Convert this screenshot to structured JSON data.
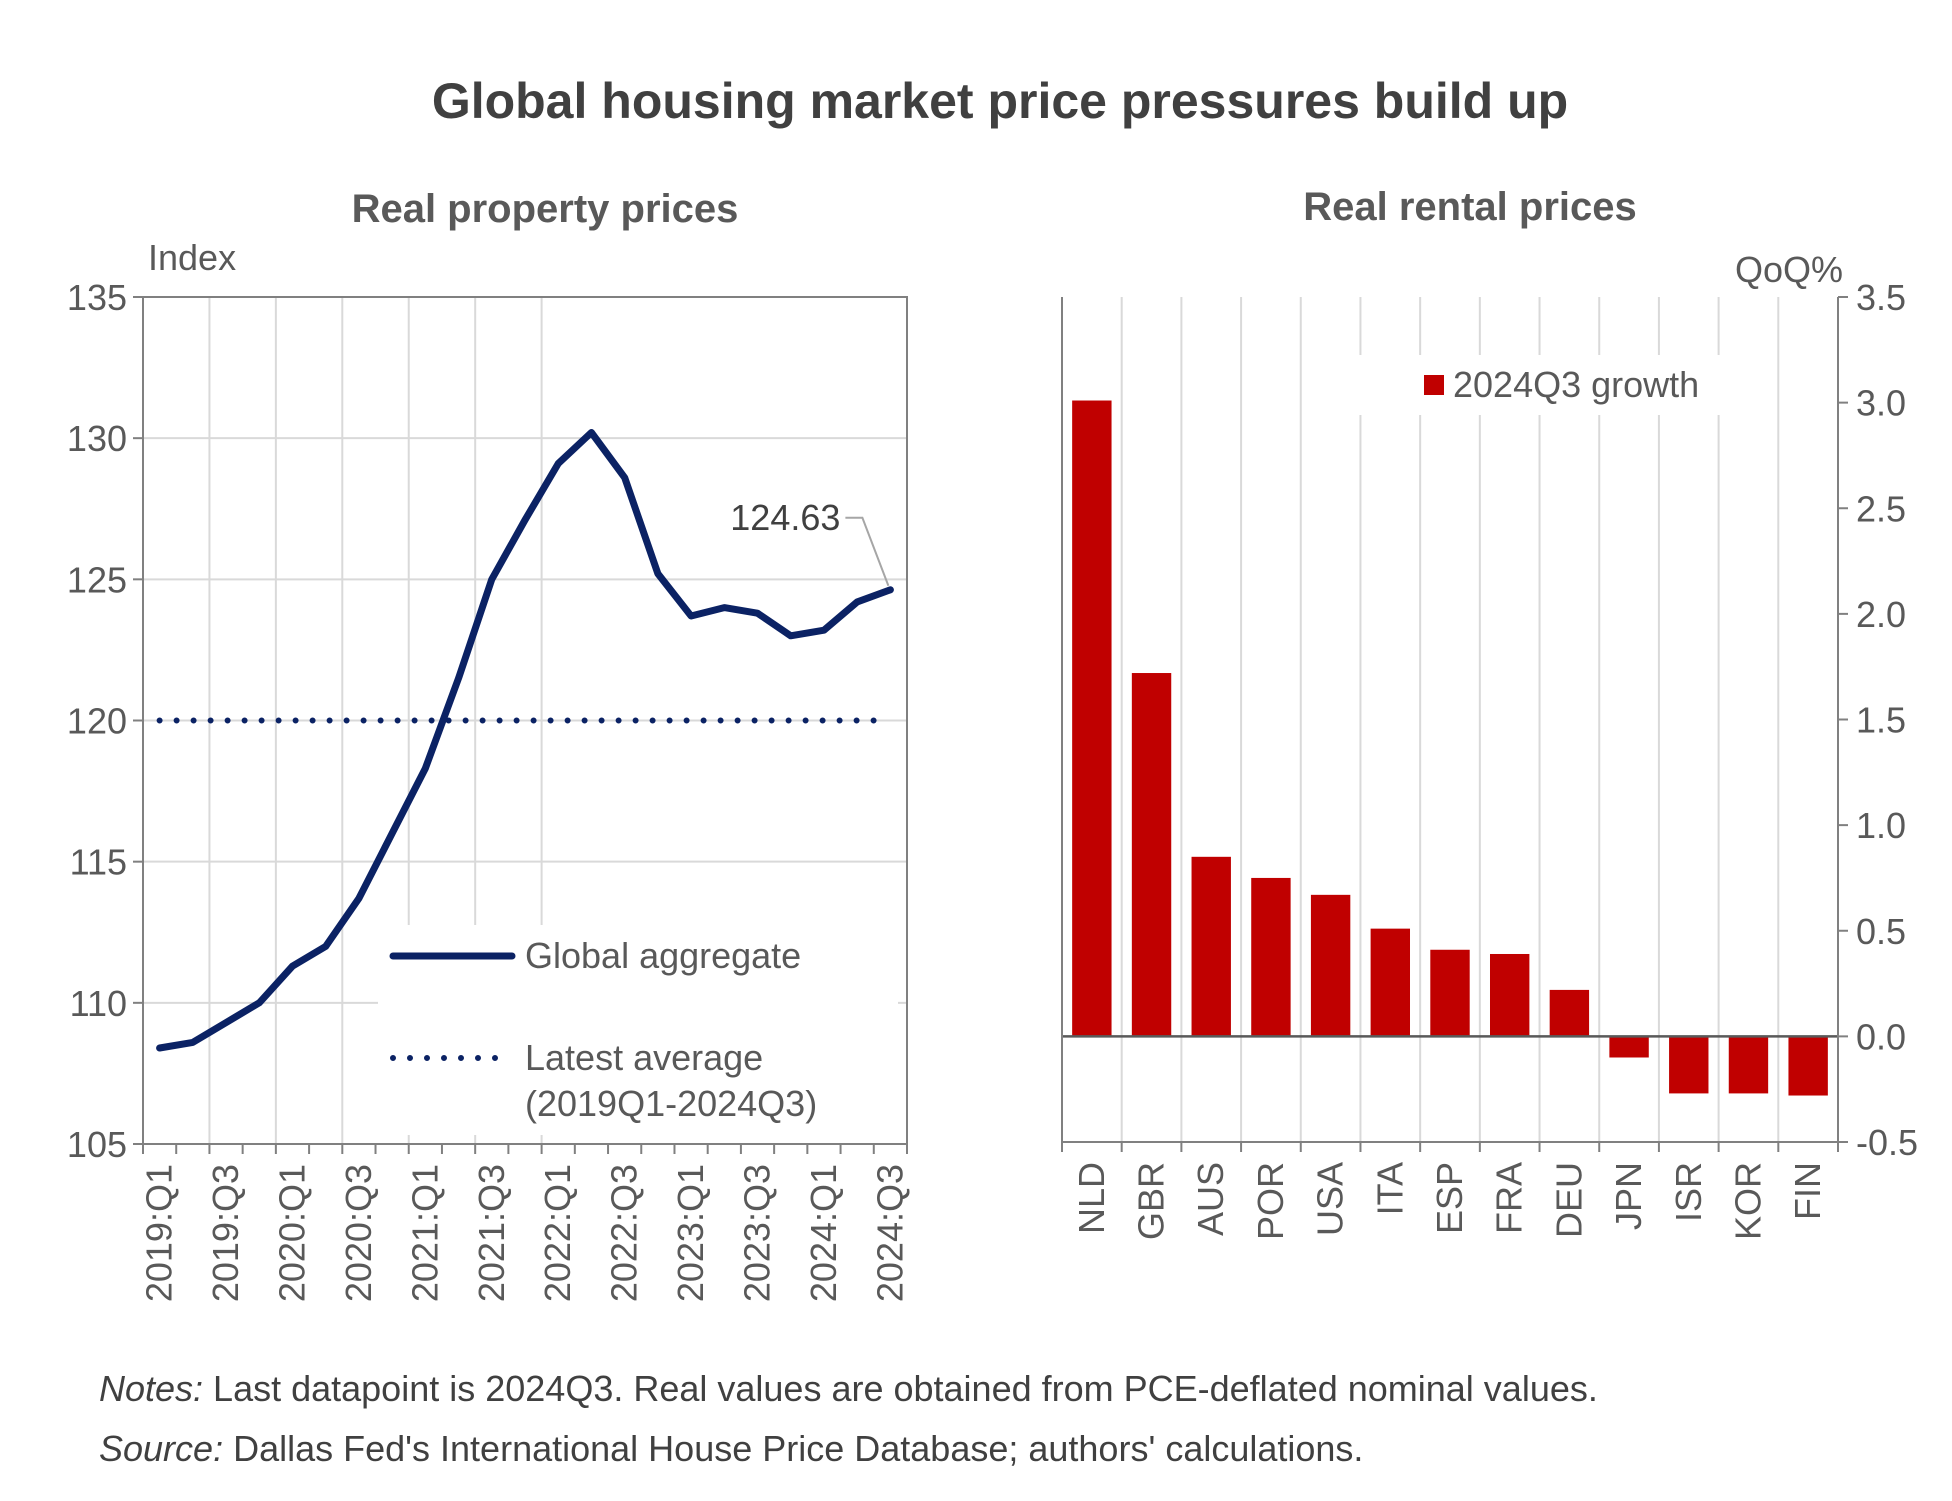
{
  "title": "Global housing market price pressures build up",
  "chart_data": [
    {
      "type": "line",
      "title": "Real property prices",
      "ylabel": "Index",
      "ylim": [
        105,
        135
      ],
      "yticks": [
        105,
        110,
        115,
        120,
        125,
        130,
        135
      ],
      "x": [
        "2019:Q1",
        "2019:Q2",
        "2019:Q3",
        "2019:Q4",
        "2020:Q1",
        "2020:Q2",
        "2020:Q3",
        "2020:Q4",
        "2021:Q1",
        "2021:Q2",
        "2021:Q3",
        "2021:Q4",
        "2022:Q1",
        "2022:Q2",
        "2022:Q3",
        "2022:Q4",
        "2023:Q1",
        "2023:Q2",
        "2023:Q3",
        "2023:Q4",
        "2024:Q1",
        "2024:Q2",
        "2024:Q3"
      ],
      "xtick_labels": [
        "2019:Q1",
        "2019:Q3",
        "2020:Q1",
        "2020:Q3",
        "2021:Q1",
        "2021:Q3",
        "2022:Q1",
        "2022:Q3",
        "2023:Q1",
        "2023:Q3",
        "2024:Q1",
        "2024:Q3"
      ],
      "series": [
        {
          "name": "Global aggregate",
          "style": "solid",
          "color": "#0b2264",
          "values": [
            108.4,
            108.6,
            109.3,
            110.0,
            111.3,
            112.0,
            113.7,
            116.0,
            118.3,
            121.5,
            125.0,
            127.1,
            129.1,
            130.2,
            128.6,
            125.2,
            123.7,
            124.0,
            123.8,
            123.0,
            123.2,
            124.2,
            124.63
          ]
        },
        {
          "name": "Latest average\n(2019Q1-2024Q3)",
          "style": "dotted",
          "color": "#0b2264",
          "values": [
            120,
            120,
            120,
            120,
            120,
            120,
            120,
            120,
            120,
            120,
            120,
            120,
            120,
            120,
            120,
            120,
            120,
            120,
            120,
            120,
            120,
            120,
            120
          ]
        }
      ],
      "annotations": [
        {
          "text": "124.63",
          "x": "2024:Q3",
          "y": 124.63
        }
      ],
      "legend": "bottom-right",
      "grid": true
    },
    {
      "type": "bar",
      "title": "Real rental prices",
      "ylabel": "QoQ%",
      "ylim": [
        -0.5,
        3.5
      ],
      "yticks": [
        -0.5,
        0.0,
        0.5,
        1.0,
        1.5,
        2.0,
        2.5,
        3.0,
        3.5
      ],
      "ytick_labels": [
        "-0.5",
        "0.0",
        "0.5",
        "1.0",
        "1.5",
        "2.0",
        "2.5",
        "3.0",
        "3.5"
      ],
      "categories": [
        "NLD",
        "GBR",
        "AUS",
        "POR",
        "USA",
        "ITA",
        "ESP",
        "FRA",
        "DEU",
        "JPN",
        "ISR",
        "KOR",
        "FIN"
      ],
      "series": [
        {
          "name": "2024Q3 growth",
          "color": "#c00000",
          "values": [
            3.01,
            1.72,
            0.85,
            0.75,
            0.67,
            0.51,
            0.41,
            0.39,
            0.22,
            -0.1,
            -0.27,
            -0.27,
            -0.28
          ]
        }
      ],
      "legend": "top-right",
      "grid": true
    }
  ],
  "notes": {
    "notes_label": "Notes:",
    "notes_text": " Last datapoint is 2024Q3. Real values are obtained from PCE-deflated nominal values.",
    "source_label": "Source:",
    "source_text": " Dallas Fed's International House Price Database; authors' calculations."
  }
}
